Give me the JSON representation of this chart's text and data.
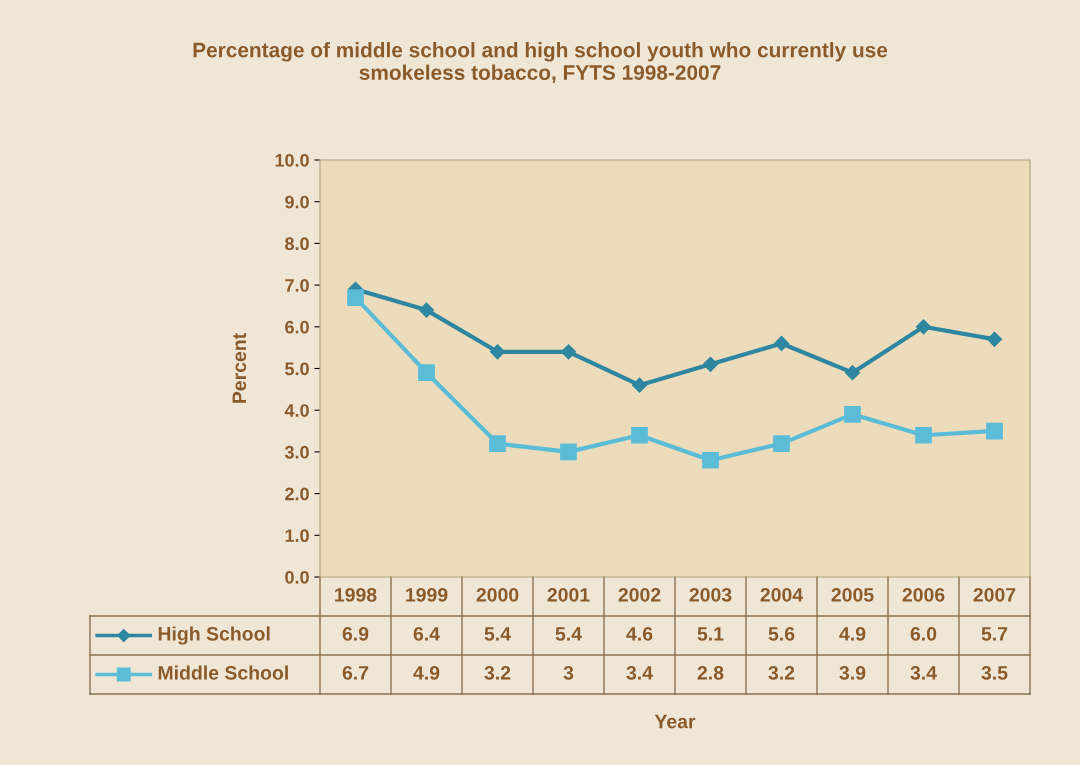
{
  "chart_data": {
    "type": "line",
    "title": "Percentage of middle school and high school youth who currently use\nsmokeless tobacco, FYTS 1998-2007",
    "annotations": [
      "Year"
    ],
    "ylabel": "Percent",
    "categories": [
      "1998",
      "1999",
      "2000",
      "2001",
      "2002",
      "2003",
      "2004",
      "2005",
      "2006",
      "2007"
    ],
    "series": [
      {
        "name": "High School",
        "color": "#2e86a0",
        "marker": "diamond",
        "values": [
          6.9,
          6.4,
          5.4,
          5.4,
          4.6,
          5.1,
          5.6,
          4.9,
          6.0,
          5.7
        ],
        "value_labels": [
          "6.9",
          "6.4",
          "5.4",
          "5.4",
          "4.6",
          "5.1",
          "5.6",
          "4.9",
          "6.0",
          "5.7"
        ]
      },
      {
        "name": "Middle School",
        "color": "#5bbcd8",
        "marker": "square",
        "values": [
          6.7,
          4.9,
          3.2,
          3,
          3.4,
          2.8,
          3.2,
          3.9,
          3.4,
          3.5
        ],
        "value_labels": [
          "6.7",
          "4.9",
          "3.2",
          "3",
          "3.4",
          "2.8",
          "3.2",
          "3.9",
          "3.4",
          "3.5"
        ]
      }
    ],
    "ylim": [
      0,
      10
    ],
    "yticks": [
      {
        "value": 0,
        "label": "0.0"
      },
      {
        "value": 1,
        "label": "1.0"
      },
      {
        "value": 2,
        "label": "2.0"
      },
      {
        "value": 3,
        "label": "3.0"
      },
      {
        "value": 4,
        "label": "4.0"
      },
      {
        "value": 5,
        "label": "5.0"
      },
      {
        "value": 6,
        "label": "6.0"
      },
      {
        "value": 7,
        "label": "7.0"
      },
      {
        "value": 8,
        "label": "8.0"
      },
      {
        "value": 9,
        "label": "9.0"
      },
      {
        "value": 10,
        "label": "10.0"
      }
    ],
    "grid": false,
    "legend": "bottom",
    "data_labels": true
  }
}
